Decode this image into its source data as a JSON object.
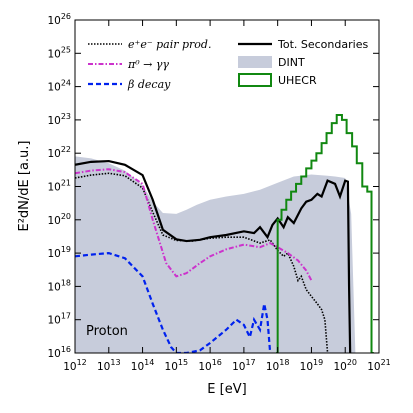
{
  "chart_data": {
    "type": "line",
    "x_scale": "log",
    "y_scale": "log",
    "xlim": [
      1000000000000.0,
      1e+21
    ],
    "ylim": [
      1e+16,
      1e+26
    ],
    "xlabel": "E [eV]",
    "ylabel": "E²dN/dE [a.u.]",
    "x_ticks": [
      {
        "exp": "12",
        "value": 1000000000000.0
      },
      {
        "exp": "13",
        "value": 10000000000000.0
      },
      {
        "exp": "14",
        "value": 100000000000000.0
      },
      {
        "exp": "15",
        "value": 1000000000000000.0
      },
      {
        "exp": "16",
        "value": 1e+16
      },
      {
        "exp": "17",
        "value": 1e+17
      },
      {
        "exp": "18",
        "value": 1e+18
      },
      {
        "exp": "19",
        "value": 1e+19
      },
      {
        "exp": "20",
        "value": 1e+20
      },
      {
        "exp": "21",
        "value": 1e+21
      }
    ],
    "y_ticks": [
      {
        "exp": "16",
        "value": 1e+16
      },
      {
        "exp": "17",
        "value": 1e+17
      },
      {
        "exp": "18",
        "value": 1e+18
      },
      {
        "exp": "19",
        "value": 1e+19
      },
      {
        "exp": "20",
        "value": 1e+20
      },
      {
        "exp": "21",
        "value": 1e+21
      },
      {
        "exp": "22",
        "value": 1e+22
      },
      {
        "exp": "23",
        "value": 1e+23
      },
      {
        "exp": "24",
        "value": 1e+24
      },
      {
        "exp": "25",
        "value": 1e+25
      },
      {
        "exp": "26",
        "value": 1e+26
      }
    ],
    "tick_base": "10",
    "annotation": "Proton",
    "legend": [
      {
        "name": "e⁺e⁻ pair prod.",
        "series": "pair"
      },
      {
        "name": "π⁰ → γγ",
        "series": "pion"
      },
      {
        "name": "β decay",
        "series": "beta"
      },
      {
        "name": "Tot. Secondaries",
        "series": "total"
      },
      {
        "name": "DINT",
        "series": "dint"
      },
      {
        "name": "UHECR",
        "series": "uhecr"
      }
    ],
    "series": [
      {
        "id": "dint",
        "name": "DINT",
        "style": "fill",
        "color": "#c7ccdb",
        "x": [
          1000000000000.0,
          3000000000000.0,
          10000000000000.0,
          30000000000000.0,
          100000000000000.0,
          200000000000000.0,
          400000000000000.0,
          1000000000000000.0,
          2000000000000000.0,
          4000000000000000.0,
          1e+16,
          3e+16,
          1e+17,
          3e+17,
          1e+18,
          3e+18,
          1e+19,
          3e+19,
          5e+19,
          1e+20,
          1.5e+20,
          2e+20
        ],
        "y": [
          8e+21,
          7e+21,
          5e+21,
          3e+21,
          1.1e+21,
          3.5e+20,
          1.6e+20,
          1.5e+20,
          2e+20,
          2.8e+20,
          4e+20,
          5e+20,
          6e+20,
          8e+20,
          1.3e+21,
          2e+21,
          2.3e+21,
          2.1e+21,
          2e+21,
          1.8e+21,
          1.5e+20,
          1e+16
        ]
      },
      {
        "id": "total",
        "name": "Tot. Secondaries",
        "style": "solid",
        "color": "#000000",
        "x": [
          1000000000000.0,
          3000000000000.0,
          10000000000000.0,
          30000000000000.0,
          100000000000000.0,
          200000000000000.0,
          400000000000000.0,
          1000000000000000.0,
          2000000000000000.0,
          5000000000000000.0,
          1e+16,
          3e+16,
          1e+17,
          2e+17,
          3e+17,
          5e+17,
          7e+17,
          1e+18,
          1.5e+18,
          2e+18,
          3e+18,
          5e+18,
          7e+18,
          1e+19,
          1.5e+19,
          2e+19,
          3e+19,
          5e+19,
          7e+19,
          1e+20,
          1.2e+20,
          1.3e+20,
          1.4e+20
        ],
        "y": [
          4.5e+21,
          5.5e+21,
          5.8e+21,
          4.5e+21,
          2.2e+21,
          4e+20,
          5e+19,
          2.6e+19,
          2.3e+19,
          2.5e+19,
          3e+19,
          3.5e+19,
          4.5e+19,
          4e+19,
          6e+19,
          3e+19,
          7e+19,
          1.1e+20,
          6e+19,
          1.2e+20,
          8e+19,
          2.2e+20,
          3.5e+20,
          4e+20,
          6e+20,
          5e+20,
          1.5e+21,
          1.2e+21,
          5e+20,
          1.5e+21,
          1.4e+21,
          1e+18,
          1e+16
        ]
      },
      {
        "id": "pair",
        "name": "e⁺e⁻ pair prod.",
        "style": "dotted",
        "color": "#000000",
        "x": [
          1000000000000.0,
          3000000000000.0,
          10000000000000.0,
          30000000000000.0,
          100000000000000.0,
          200000000000000.0,
          400000000000000.0,
          1000000000000000.0,
          3000000000000000.0,
          1e+16,
          3e+16,
          1e+17,
          3e+17,
          6e+17,
          1e+18,
          1.5e+18,
          2e+18,
          3e+18,
          4e+18,
          5e+18,
          7e+18,
          1e+19,
          1.5e+19,
          2e+19,
          2.5e+19,
          3e+19
        ],
        "y": [
          1.8e+21,
          2.2e+21,
          2.5e+21,
          2.1e+21,
          9e+20,
          1.7e+20,
          3.5e+19,
          2.4e+19,
          2.3e+19,
          2.8e+19,
          3e+19,
          3e+19,
          2e+19,
          2.5e+19,
          1.2e+19,
          8e+18,
          1e+19,
          4e+18,
          1.5e+18,
          2e+18,
          8e+17,
          5e+17,
          3e+17,
          2e+17,
          1e+17,
          1e+16
        ]
      },
      {
        "id": "pion",
        "name": "π⁰ → γγ",
        "style": "dashdot",
        "color": "#cc33cc",
        "x": [
          1000000000000.0,
          3000000000000.0,
          10000000000000.0,
          30000000000000.0,
          100000000000000.0,
          200000000000000.0,
          500000000000000.0,
          1000000000000000.0,
          2000000000000000.0,
          5000000000000000.0,
          1e+16,
          3e+16,
          1e+17,
          3e+17,
          6e+17,
          1e+18,
          2e+18,
          4e+18,
          7e+18,
          1e+19
        ],
        "y": [
          2.5e+21,
          3e+21,
          3.3e+21,
          2.7e+21,
          1.2e+21,
          1e+20,
          5e+18,
          2e+18,
          2.5e+18,
          5e+18,
          8e+18,
          1.3e+19,
          1.8e+19,
          1.5e+19,
          2e+19,
          1.5e+19,
          1e+19,
          6e+18,
          3e+18,
          1.5e+18
        ]
      },
      {
        "id": "beta",
        "name": "β decay",
        "style": "dashed",
        "color": "#0022ee",
        "x": [
          1000000000000.0,
          3000000000000.0,
          10000000000000.0,
          30000000000000.0,
          100000000000000.0,
          200000000000000.0,
          400000000000000.0,
          700000000000000.0,
          1000000000000000.0,
          2000000000000000.0,
          5000000000000000.0,
          1e+16,
          3e+16,
          6e+16,
          1e+17,
          1.5e+17,
          2e+17,
          3e+17,
          4e+17,
          5e+17,
          6e+17
        ],
        "y": [
          8e+18,
          9e+18,
          1e+19,
          7e+18,
          2e+18,
          3e+17,
          5e+16,
          1.5e+16,
          1e+16,
          1e+16,
          1.2e+16,
          2e+16,
          5e+16,
          1e+17,
          7e+16,
          3e+16,
          1e+17,
          5e+16,
          3e+17,
          1e+17,
          1e+16
        ]
      },
      {
        "id": "uhecr",
        "name": "UHECR",
        "style": "step",
        "color": "#118811",
        "x": [
          9e+17,
          1e+18,
          1.3e+18,
          1.8e+18,
          2.5e+18,
          3.5e+18,
          5e+18,
          7e+18,
          1e+19,
          1.4e+19,
          2e+19,
          2.8e+19,
          4e+19,
          5.6e+19,
          8e+19,
          1.1e+20,
          1.6e+20,
          2.2e+20,
          3.2e+20,
          4.5e+20,
          6e+20,
          7e+20
        ],
        "y": [
          1e+16,
          1e+20,
          2e+20,
          4e+20,
          7e+20,
          1.2e+21,
          2e+21,
          3.5e+21,
          6e+21,
          1e+22,
          2e+22,
          4e+22,
          8e+22,
          1.4e+23,
          1e+23,
          4e+22,
          1.6e+22,
          5e+21,
          1e+21,
          7e+20,
          1e+16,
          1e+16
        ]
      }
    ]
  }
}
